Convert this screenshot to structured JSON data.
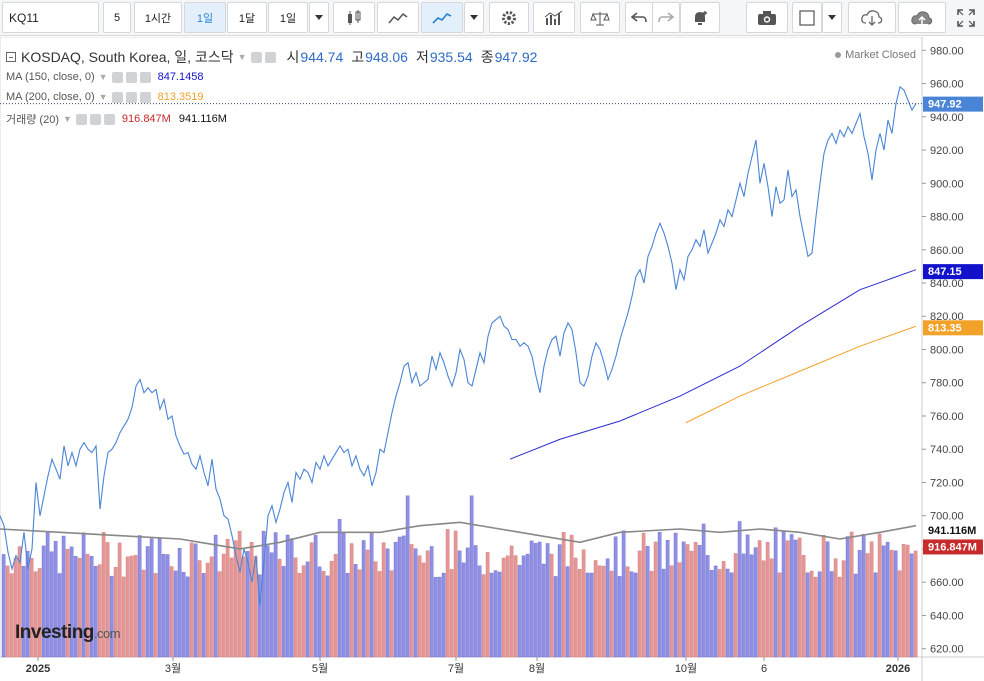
{
  "toolbar": {
    "symbol": "KQ11",
    "interval_value": "5",
    "intervals": [
      "1시간",
      "1일",
      "1달",
      "1일"
    ],
    "active_interval_index": 1
  },
  "legend": {
    "title": "KOSDAQ, South Korea, 일, 코스닥",
    "open_label": "시",
    "open": "944.74",
    "high_label": "고",
    "high": "948.06",
    "low_label": "저",
    "low": "935.54",
    "close_label": "종",
    "close": "947.92",
    "status": "Market Closed",
    "ma150_label": "MA (150, close, 0)",
    "ma150_value": "847.1458",
    "ma200_label": "MA (200, close, 0)",
    "ma200_value": "813.3519",
    "volume_label": "거래량 (20)",
    "volume_value": "916.847M",
    "volume_ma_value": "941.116M"
  },
  "logo": {
    "name": "Investing",
    "suffix": ".com"
  },
  "colors": {
    "price_line": "#4a84d6",
    "ma150": "#2b2bd1",
    "ma200": "#f2a129",
    "volume_up": "#8f8fe3",
    "volume_down": "#e59797",
    "volume_ma": "#888888",
    "close_badge": "#4a84d6",
    "ma150_badge": "#1212cc",
    "ma200_badge": "#f2a129",
    "vol_ma_badge": "#111111",
    "vol_badge": "#c72a2a"
  },
  "chart_data": {
    "type": "line",
    "x_ticks": [
      "2025",
      "3월",
      "5월",
      "7월",
      "8월",
      "10월",
      "6",
      "2026"
    ],
    "y_ticks": [
      620,
      640,
      660,
      680,
      700,
      720,
      740,
      760,
      780,
      800,
      820,
      840,
      860,
      880,
      900,
      920,
      940,
      960,
      980
    ],
    "ylim": [
      615,
      988
    ],
    "y_tick_labels": [
      "620.00",
      "640.00",
      "660.00",
      "680.00",
      "700.00",
      "720.00",
      "740.00",
      "760.00",
      "780.00",
      "800.00",
      "820.00",
      "840.00",
      "860.00",
      "880.00",
      "900.00",
      "920.00",
      "940.00",
      "960.00",
      "980.00"
    ],
    "price": [
      [
        0,
        700
      ],
      [
        4,
        694
      ],
      [
        8,
        678
      ],
      [
        12,
        668
      ],
      [
        16,
        676
      ],
      [
        20,
        672
      ],
      [
        24,
        690
      ],
      [
        28,
        668
      ],
      [
        32,
        680
      ],
      [
        36,
        720
      ],
      [
        40,
        700
      ],
      [
        44,
        712
      ],
      [
        48,
        724
      ],
      [
        52,
        734
      ],
      [
        56,
        728
      ],
      [
        60,
        722
      ],
      [
        64,
        742
      ],
      [
        68,
        730
      ],
      [
        72,
        738
      ],
      [
        76,
        730
      ],
      [
        80,
        740
      ],
      [
        84,
        744
      ],
      [
        88,
        740
      ],
      [
        92,
        738
      ],
      [
        96,
        742
      ],
      [
        100,
        704
      ],
      [
        104,
        724
      ],
      [
        108,
        738
      ],
      [
        112,
        740
      ],
      [
        116,
        744
      ],
      [
        120,
        750
      ],
      [
        124,
        754
      ],
      [
        128,
        758
      ],
      [
        132,
        765
      ],
      [
        136,
        778
      ],
      [
        140,
        782
      ],
      [
        144,
        774
      ],
      [
        148,
        777
      ],
      [
        152,
        774
      ],
      [
        156,
        776
      ],
      [
        160,
        764
      ],
      [
        164,
        770
      ],
      [
        168,
        758
      ],
      [
        172,
        760
      ],
      [
        176,
        748
      ],
      [
        180,
        742
      ],
      [
        184,
        737
      ],
      [
        188,
        738
      ],
      [
        192,
        731
      ],
      [
        196,
        728
      ],
      [
        200,
        736
      ],
      [
        204,
        726
      ],
      [
        208,
        718
      ],
      [
        212,
        734
      ],
      [
        216,
        716
      ],
      [
        220,
        710
      ],
      [
        224,
        700
      ],
      [
        228,
        698
      ],
      [
        232,
        688
      ],
      [
        236,
        676
      ],
      [
        240,
        666
      ],
      [
        244,
        680
      ],
      [
        248,
        672
      ],
      [
        252,
        660
      ],
      [
        256,
        676
      ],
      [
        260,
        646
      ],
      [
        264,
        672
      ],
      [
        268,
        700
      ],
      [
        272,
        706
      ],
      [
        276,
        696
      ],
      [
        280,
        704
      ],
      [
        284,
        714
      ],
      [
        288,
        720
      ],
      [
        292,
        708
      ],
      [
        296,
        726
      ],
      [
        300,
        722
      ],
      [
        304,
        728
      ],
      [
        308,
        726
      ],
      [
        312,
        720
      ],
      [
        316,
        732
      ],
      [
        320,
        728
      ],
      [
        324,
        736
      ],
      [
        328,
        730
      ],
      [
        332,
        734
      ],
      [
        336,
        738
      ],
      [
        340,
        742
      ],
      [
        344,
        738
      ],
      [
        348,
        740
      ],
      [
        352,
        730
      ],
      [
        356,
        736
      ],
      [
        360,
        728
      ],
      [
        364,
        724
      ],
      [
        368,
        730
      ],
      [
        372,
        718
      ],
      [
        376,
        726
      ],
      [
        380,
        740
      ],
      [
        384,
        738
      ],
      [
        388,
        750
      ],
      [
        392,
        762
      ],
      [
        396,
        772
      ],
      [
        400,
        780
      ],
      [
        404,
        790
      ],
      [
        408,
        792
      ],
      [
        412,
        780
      ],
      [
        416,
        786
      ],
      [
        420,
        778
      ],
      [
        424,
        780
      ],
      [
        428,
        782
      ],
      [
        432,
        796
      ],
      [
        436,
        788
      ],
      [
        440,
        798
      ],
      [
        444,
        792
      ],
      [
        448,
        784
      ],
      [
        452,
        778
      ],
      [
        456,
        786
      ],
      [
        460,
        800
      ],
      [
        464,
        794
      ],
      [
        468,
        780
      ],
      [
        472,
        778
      ],
      [
        476,
        788
      ],
      [
        480,
        798
      ],
      [
        484,
        792
      ],
      [
        488,
        808
      ],
      [
        492,
        816
      ],
      [
        496,
        818
      ],
      [
        500,
        820
      ],
      [
        504,
        814
      ],
      [
        508,
        812
      ],
      [
        512,
        806
      ],
      [
        516,
        806
      ],
      [
        520,
        802
      ],
      [
        524,
        804
      ],
      [
        528,
        802
      ],
      [
        532,
        796
      ],
      [
        536,
        784
      ],
      [
        540,
        774
      ],
      [
        544,
        790
      ],
      [
        548,
        800
      ],
      [
        552,
        806
      ],
      [
        556,
        808
      ],
      [
        560,
        796
      ],
      [
        564,
        810
      ],
      [
        568,
        816
      ],
      [
        572,
        812
      ],
      [
        576,
        798
      ],
      [
        580,
        780
      ],
      [
        584,
        778
      ],
      [
        588,
        784
      ],
      [
        592,
        796
      ],
      [
        596,
        804
      ],
      [
        600,
        800
      ],
      [
        604,
        792
      ],
      [
        608,
        782
      ],
      [
        612,
        788
      ],
      [
        616,
        796
      ],
      [
        620,
        806
      ],
      [
        624,
        814
      ],
      [
        628,
        822
      ],
      [
        632,
        832
      ],
      [
        636,
        844
      ],
      [
        640,
        848
      ],
      [
        644,
        840
      ],
      [
        648,
        856
      ],
      [
        652,
        862
      ],
      [
        656,
        870
      ],
      [
        660,
        876
      ],
      [
        664,
        870
      ],
      [
        668,
        862
      ],
      [
        672,
        852
      ],
      [
        676,
        836
      ],
      [
        680,
        848
      ],
      [
        684,
        842
      ],
      [
        688,
        856
      ],
      [
        692,
        860
      ],
      [
        696,
        866
      ],
      [
        700,
        862
      ],
      [
        704,
        872
      ],
      [
        708,
        858
      ],
      [
        712,
        864
      ],
      [
        716,
        870
      ],
      [
        720,
        878
      ],
      [
        724,
        874
      ],
      [
        728,
        884
      ],
      [
        732,
        880
      ],
      [
        736,
        890
      ],
      [
        740,
        900
      ],
      [
        744,
        892
      ],
      [
        748,
        906
      ],
      [
        752,
        916
      ],
      [
        756,
        926
      ],
      [
        760,
        900
      ],
      [
        764,
        912
      ],
      [
        768,
        898
      ],
      [
        772,
        880
      ],
      [
        776,
        898
      ],
      [
        780,
        888
      ],
      [
        784,
        890
      ],
      [
        788,
        908
      ],
      [
        792,
        892
      ],
      [
        796,
        896
      ],
      [
        800,
        880
      ],
      [
        804,
        868
      ],
      [
        808,
        856
      ],
      [
        812,
        858
      ],
      [
        816,
        880
      ],
      [
        820,
        900
      ],
      [
        824,
        918
      ],
      [
        828,
        926
      ],
      [
        832,
        930
      ],
      [
        836,
        924
      ],
      [
        840,
        932
      ],
      [
        844,
        928
      ],
      [
        848,
        934
      ],
      [
        852,
        930
      ],
      [
        856,
        936
      ],
      [
        860,
        942
      ],
      [
        864,
        928
      ],
      [
        868,
        918
      ],
      [
        872,
        902
      ],
      [
        876,
        920
      ],
      [
        880,
        930
      ],
      [
        884,
        920
      ],
      [
        888,
        938
      ],
      [
        892,
        930
      ],
      [
        896,
        948
      ],
      [
        900,
        958
      ],
      [
        904,
        956
      ],
      [
        908,
        950
      ],
      [
        912,
        944
      ],
      [
        916,
        948
      ]
    ],
    "ma150": [
      [
        510,
        734
      ],
      [
        560,
        746
      ],
      [
        620,
        757
      ],
      [
        680,
        772
      ],
      [
        740,
        790
      ],
      [
        800,
        814
      ],
      [
        860,
        836
      ],
      [
        916,
        848
      ]
    ],
    "ma200": [
      [
        686,
        756
      ],
      [
        740,
        772
      ],
      [
        800,
        787
      ],
      [
        860,
        802
      ],
      [
        916,
        814
      ]
    ],
    "volume": {
      "baseline_price": 615,
      "up_seed": 0.48,
      "heights": [],
      "ma": [
        [
          0,
          692
        ],
        [
          60,
          690
        ],
        [
          120,
          688
        ],
        [
          180,
          686
        ],
        [
          200,
          684
        ],
        [
          240,
          680
        ],
        [
          280,
          684
        ],
        [
          320,
          690
        ],
        [
          380,
          690
        ],
        [
          420,
          694
        ],
        [
          460,
          696
        ],
        [
          500,
          692
        ],
        [
          540,
          688
        ],
        [
          580,
          684
        ],
        [
          620,
          690
        ],
        [
          680,
          692
        ],
        [
          720,
          690
        ],
        [
          760,
          692
        ],
        [
          800,
          690
        ],
        [
          840,
          686
        ],
        [
          880,
          690
        ],
        [
          916,
          694
        ]
      ]
    },
    "last_close": 947.92,
    "badges": [
      "947.92",
      "847.15",
      "813.35",
      "941.116M",
      "916.847M"
    ]
  }
}
